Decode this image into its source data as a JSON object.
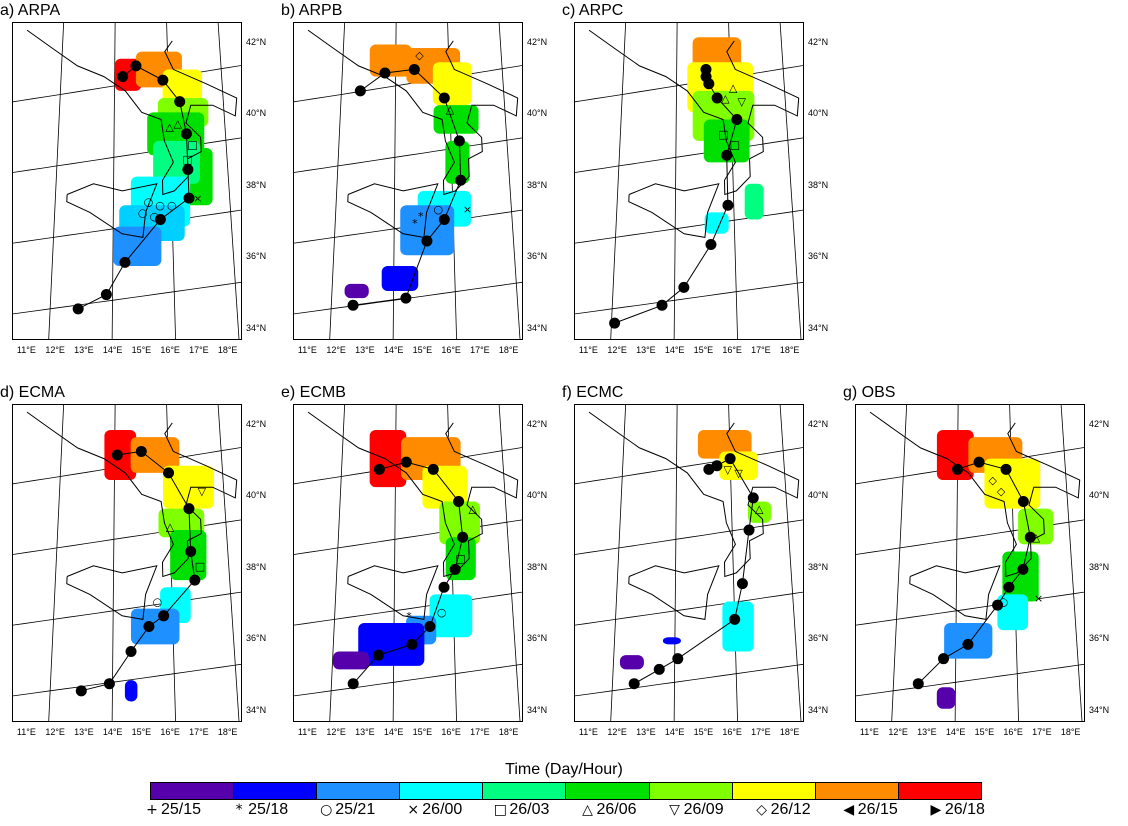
{
  "chart_data": [
    {
      "type": "scatter",
      "title": "a) ARPA",
      "track": [
        [
          12.9,
          34.7
        ],
        [
          13.8,
          35.1
        ],
        [
          14.4,
          36.0
        ],
        [
          15.6,
          37.2
        ],
        [
          16.6,
          37.8
        ],
        [
          16.6,
          38.6
        ],
        [
          16.6,
          39.6
        ],
        [
          16.4,
          40.5
        ],
        [
          15.8,
          41.1
        ],
        [
          14.8,
          41.5
        ],
        [
          14.3,
          41.2
        ]
      ],
      "patches": [
        {
          "lon": [
            14.0,
            15.0
          ],
          "lat": [
            40.8,
            41.7
          ],
          "color": "#ff0000"
        },
        {
          "lon": [
            14.8,
            16.5
          ],
          "lat": [
            40.9,
            41.9
          ],
          "color": "#ff8c00"
        },
        {
          "lon": [
            15.8,
            17.2
          ],
          "lat": [
            40.2,
            41.4
          ],
          "color": "#ffff00"
        },
        {
          "lon": [
            15.6,
            17.4
          ],
          "lat": [
            39.8,
            40.6
          ],
          "color": "#80ff00"
        },
        {
          "lon": [
            15.2,
            17.2
          ],
          "lat": [
            39.0,
            40.2
          ],
          "color": "#00e000"
        },
        {
          "lon": [
            16.4,
            17.4
          ],
          "lat": [
            37.6,
            39.2
          ],
          "color": "#00e000"
        },
        {
          "lon": [
            15.4,
            17.0
          ],
          "lat": [
            38.2,
            39.4
          ],
          "color": "#00ff80"
        },
        {
          "lon": [
            14.6,
            16.6
          ],
          "lat": [
            37.0,
            38.4
          ],
          "color": "#00ffff"
        },
        {
          "lon": [
            14.2,
            16.4
          ],
          "lat": [
            36.6,
            37.6
          ],
          "color": "#00d0ff"
        },
        {
          "lon": [
            14.0,
            15.6
          ],
          "lat": [
            35.9,
            37.0
          ],
          "color": "#1e90ff"
        }
      ],
      "markers": [
        {
          "sym": "○",
          "lon": 15.2,
          "lat": 37.7
        },
        {
          "sym": "○",
          "lon": 15.6,
          "lat": 37.6
        },
        {
          "sym": "○",
          "lon": 16.0,
          "lat": 37.6
        },
        {
          "sym": "○",
          "lon": 15.0,
          "lat": 37.4
        },
        {
          "sym": "○",
          "lon": 15.4,
          "lat": 37.3
        },
        {
          "sym": "□",
          "lon": 16.6,
          "lat": 38.9
        },
        {
          "sym": "□",
          "lon": 16.8,
          "lat": 39.3
        },
        {
          "sym": "△",
          "lon": 16.3,
          "lat": 39.9
        },
        {
          "sym": "△",
          "lon": 16.0,
          "lat": 39.8
        },
        {
          "sym": "×",
          "lon": 16.9,
          "lat": 37.8
        }
      ]
    },
    {
      "type": "scatter",
      "title": "b) ARPB",
      "track": [
        [
          12.7,
          34.8
        ],
        [
          14.4,
          35.0
        ],
        [
          15.1,
          36.6
        ],
        [
          15.7,
          37.2
        ],
        [
          16.3,
          38.3
        ],
        [
          16.3,
          39.4
        ],
        [
          15.8,
          40.6
        ],
        [
          14.7,
          41.4
        ],
        [
          13.6,
          41.3
        ],
        [
          12.7,
          40.8
        ]
      ],
      "patches": [
        {
          "lon": [
            13.0,
            14.6
          ],
          "lat": [
            41.2,
            42.1
          ],
          "color": "#ff8c00"
        },
        {
          "lon": [
            14.4,
            16.4
          ],
          "lat": [
            41.0,
            42.0
          ],
          "color": "#ff8c00"
        },
        {
          "lon": [
            15.4,
            16.8
          ],
          "lat": [
            40.4,
            41.6
          ],
          "color": "#ffff00"
        },
        {
          "lon": [
            15.4,
            17.0
          ],
          "lat": [
            39.6,
            40.4
          ],
          "color": "#00e000"
        },
        {
          "lon": [
            15.8,
            16.6
          ],
          "lat": [
            38.2,
            39.4
          ],
          "color": "#00e000"
        },
        {
          "lon": [
            14.8,
            16.6
          ],
          "lat": [
            37.0,
            38.0
          ],
          "color": "#00ffff"
        },
        {
          "lon": [
            14.2,
            16.0
          ],
          "lat": [
            36.2,
            37.6
          ],
          "color": "#1e90ff"
        },
        {
          "lon": [
            13.6,
            14.8
          ],
          "lat": [
            35.2,
            35.9
          ],
          "color": "#0000ff"
        },
        {
          "lon": [
            12.4,
            13.2
          ],
          "lat": [
            35.0,
            35.4
          ],
          "color": "#5500aa"
        }
      ],
      "markers": [
        {
          "sym": "*",
          "lon": 14.7,
          "lat": 37.1
        },
        {
          "sym": "*",
          "lon": 14.9,
          "lat": 37.3
        },
        {
          "sym": "○",
          "lon": 15.5,
          "lat": 37.5
        },
        {
          "sym": "×",
          "lon": 16.5,
          "lat": 37.5
        },
        {
          "sym": "◇",
          "lon": 14.9,
          "lat": 41.8
        },
        {
          "sym": "△",
          "lon": 16.0,
          "lat": 40.3
        }
      ]
    },
    {
      "type": "scatter",
      "title": "c) ARPC",
      "track": [
        [
          12.1,
          34.3
        ],
        [
          13.6,
          34.8
        ],
        [
          14.3,
          35.3
        ],
        [
          15.2,
          36.5
        ],
        [
          15.8,
          37.6
        ],
        [
          15.8,
          39.0
        ],
        [
          16.2,
          40.0
        ],
        [
          15.5,
          40.6
        ],
        [
          15.2,
          41.0
        ],
        [
          15.1,
          41.2
        ],
        [
          15.1,
          41.4
        ]
      ],
      "patches": [
        {
          "lon": [
            14.6,
            16.4
          ],
          "lat": [
            41.0,
            42.3
          ],
          "color": "#ff8c00"
        },
        {
          "lon": [
            14.4,
            16.8
          ],
          "lat": [
            40.2,
            41.6
          ],
          "color": "#ffff00"
        },
        {
          "lon": [
            14.6,
            16.8
          ],
          "lat": [
            39.4,
            40.8
          ],
          "color": "#80ff00"
        },
        {
          "lon": [
            15.0,
            16.6
          ],
          "lat": [
            38.8,
            40.0
          ],
          "color": "#00e000"
        },
        {
          "lon": [
            16.4,
            17.0
          ],
          "lat": [
            37.2,
            38.2
          ],
          "color": "#00ff80"
        },
        {
          "lon": [
            15.0,
            15.8
          ],
          "lat": [
            36.8,
            37.4
          ],
          "color": "#00ffff"
        }
      ],
      "markers": [
        {
          "sym": "△",
          "lon": 15.8,
          "lat": 40.6
        },
        {
          "sym": "△",
          "lon": 16.1,
          "lat": 40.9
        },
        {
          "sym": "□",
          "lon": 15.7,
          "lat": 39.6
        },
        {
          "sym": "□",
          "lon": 16.1,
          "lat": 39.3
        },
        {
          "sym": "▽",
          "lon": 16.4,
          "lat": 40.5
        }
      ]
    },
    {
      "type": "scatter",
      "title": "d) ECMA",
      "track": [
        [
          13.0,
          34.7
        ],
        [
          13.9,
          34.9
        ],
        [
          14.6,
          35.8
        ],
        [
          15.2,
          36.5
        ],
        [
          15.7,
          36.8
        ],
        [
          16.8,
          37.8
        ],
        [
          16.7,
          38.6
        ],
        [
          16.7,
          39.8
        ],
        [
          16.0,
          40.8
        ],
        [
          15.0,
          41.4
        ],
        [
          14.1,
          41.3
        ]
      ],
      "patches": [
        {
          "lon": [
            13.6,
            14.8
          ],
          "lat": [
            40.6,
            42.0
          ],
          "color": "#ff0000"
        },
        {
          "lon": [
            14.6,
            16.4
          ],
          "lat": [
            40.8,
            41.8
          ],
          "color": "#ff8c00"
        },
        {
          "lon": [
            15.8,
            17.6
          ],
          "lat": [
            39.8,
            41.0
          ],
          "color": "#ffff00"
        },
        {
          "lon": [
            15.6,
            17.2
          ],
          "lat": [
            39.0,
            39.8
          ],
          "color": "#80ff00"
        },
        {
          "lon": [
            16.0,
            17.2
          ],
          "lat": [
            37.8,
            39.2
          ],
          "color": "#00e000"
        },
        {
          "lon": [
            15.6,
            16.6
          ],
          "lat": [
            36.6,
            37.6
          ],
          "color": "#00ffff"
        },
        {
          "lon": [
            14.6,
            16.2
          ],
          "lat": [
            36.0,
            37.0
          ],
          "color": "#1e90ff"
        },
        {
          "lon": [
            14.4,
            14.8
          ],
          "lat": [
            34.4,
            35.0
          ],
          "color": "#0000ff"
        }
      ],
      "markers": [
        {
          "sym": "○",
          "lon": 15.5,
          "lat": 37.2
        },
        {
          "sym": "□",
          "lon": 17.0,
          "lat": 38.2
        },
        {
          "sym": "△",
          "lon": 16.0,
          "lat": 39.3
        },
        {
          "sym": "▽",
          "lon": 17.2,
          "lat": 40.3
        }
      ]
    },
    {
      "type": "scatter",
      "title": "e) ECMB",
      "track": [
        [
          12.7,
          34.9
        ],
        [
          13.5,
          35.7
        ],
        [
          14.6,
          36.0
        ],
        [
          15.2,
          36.5
        ],
        [
          15.7,
          37.6
        ],
        [
          16.1,
          38.1
        ],
        [
          16.4,
          39.0
        ],
        [
          16.3,
          40.0
        ],
        [
          15.4,
          40.9
        ],
        [
          14.4,
          41.1
        ],
        [
          13.4,
          40.9
        ]
      ],
      "patches": [
        {
          "lon": [
            13.0,
            14.4
          ],
          "lat": [
            40.4,
            42.0
          ],
          "color": "#ff0000"
        },
        {
          "lon": [
            14.2,
            16.4
          ],
          "lat": [
            40.6,
            41.8
          ],
          "color": "#ff8c00"
        },
        {
          "lon": [
            15.0,
            16.6
          ],
          "lat": [
            39.8,
            41.0
          ],
          "color": "#ffff00"
        },
        {
          "lon": [
            15.6,
            17.0
          ],
          "lat": [
            38.8,
            40.0
          ],
          "color": "#80ff00"
        },
        {
          "lon": [
            15.8,
            16.8
          ],
          "lat": [
            37.8,
            39.0
          ],
          "color": "#00e000"
        },
        {
          "lon": [
            15.2,
            16.6
          ],
          "lat": [
            36.2,
            37.4
          ],
          "color": "#00ffff"
        },
        {
          "lon": [
            14.4,
            15.4
          ],
          "lat": [
            36.0,
            36.8
          ],
          "color": "#1e90ff"
        },
        {
          "lon": [
            12.8,
            15.0
          ],
          "lat": [
            35.4,
            36.6
          ],
          "color": "#0000ff"
        },
        {
          "lon": [
            12.0,
            13.2
          ],
          "lat": [
            35.3,
            35.8
          ],
          "color": "#5500aa"
        }
      ],
      "markers": [
        {
          "sym": "*",
          "lon": 14.5,
          "lat": 36.8
        },
        {
          "sym": "○",
          "lon": 15.6,
          "lat": 36.9
        },
        {
          "sym": "□",
          "lon": 16.3,
          "lat": 38.4
        },
        {
          "sym": "△",
          "lon": 16.8,
          "lat": 39.8
        }
      ]
    },
    {
      "type": "scatter",
      "title": "f) ECMC",
      "track": [
        [
          12.7,
          34.9
        ],
        [
          13.5,
          35.3
        ],
        [
          14.1,
          35.6
        ],
        [
          16.0,
          36.7
        ],
        [
          16.3,
          37.7
        ],
        [
          16.6,
          39.2
        ],
        [
          16.8,
          40.1
        ],
        [
          16.0,
          41.2
        ],
        [
          15.5,
          41.0
        ],
        [
          15.2,
          40.9
        ]
      ],
      "patches": [
        {
          "lon": [
            14.8,
            16.8
          ],
          "lat": [
            41.2,
            42.0
          ],
          "color": "#ff8c00"
        },
        {
          "lon": [
            15.6,
            17.0
          ],
          "lat": [
            40.6,
            41.4
          ],
          "color": "#ffff00"
        },
        {
          "lon": [
            16.6,
            17.4
          ],
          "lat": [
            39.4,
            40.0
          ],
          "color": "#80ff00"
        },
        {
          "lon": [
            15.6,
            16.6
          ],
          "lat": [
            35.8,
            37.2
          ],
          "color": "#00ffff"
        },
        {
          "lon": [
            13.6,
            14.2
          ],
          "lat": [
            36.0,
            36.2
          ],
          "color": "#0000ff"
        },
        {
          "lon": [
            12.2,
            13.0
          ],
          "lat": [
            35.3,
            35.7
          ],
          "color": "#5500aa"
        }
      ],
      "markers": [
        {
          "sym": "▽",
          "lon": 15.9,
          "lat": 40.9
        },
        {
          "sym": "▽",
          "lon": 16.3,
          "lat": 40.8
        },
        {
          "sym": "△",
          "lon": 17.0,
          "lat": 39.8
        }
      ]
    },
    {
      "type": "scatter",
      "title": "g) OBS",
      "track": [
        [
          12.8,
          34.9
        ],
        [
          13.6,
          35.6
        ],
        [
          14.4,
          36.0
        ],
        [
          15.4,
          37.1
        ],
        [
          15.8,
          37.6
        ],
        [
          16.3,
          38.1
        ],
        [
          16.6,
          39.0
        ],
        [
          16.4,
          40.0
        ],
        [
          15.8,
          40.9
        ],
        [
          14.8,
          41.1
        ],
        [
          14.0,
          40.9
        ]
      ],
      "patches": [
        {
          "lon": [
            13.2,
            14.6
          ],
          "lat": [
            40.6,
            42.0
          ],
          "color": "#ff0000"
        },
        {
          "lon": [
            14.4,
            16.4
          ],
          "lat": [
            40.8,
            41.8
          ],
          "color": "#ff8c00"
        },
        {
          "lon": [
            15.0,
            17.0
          ],
          "lat": [
            39.8,
            41.2
          ],
          "color": "#ffff00"
        },
        {
          "lon": [
            16.2,
            17.4
          ],
          "lat": [
            38.8,
            39.8
          ],
          "color": "#80ff00"
        },
        {
          "lon": [
            15.6,
            16.8
          ],
          "lat": [
            37.2,
            38.6
          ],
          "color": "#00e000"
        },
        {
          "lon": [
            15.4,
            16.4
          ],
          "lat": [
            36.4,
            37.4
          ],
          "color": "#00ffff"
        },
        {
          "lon": [
            13.6,
            15.2
          ],
          "lat": [
            35.6,
            36.6
          ],
          "color": "#1e90ff"
        },
        {
          "lon": [
            13.4,
            14.0
          ],
          "lat": [
            34.2,
            34.8
          ],
          "color": "#5500aa"
        }
      ],
      "markers": [
        {
          "sym": "◇",
          "lon": 15.3,
          "lat": 40.6
        },
        {
          "sym": "◇",
          "lon": 15.6,
          "lat": 40.3
        },
        {
          "sym": "△",
          "lon": 16.8,
          "lat": 39.0
        },
        {
          "sym": "○",
          "lon": 15.6,
          "lat": 37.2
        },
        {
          "sym": "×",
          "lon": 16.8,
          "lat": 37.3
        }
      ]
    }
  ],
  "axes": {
    "lon_ticks": [
      "11°E",
      "12°E",
      "13°E",
      "14°E",
      "15°E",
      "16°E",
      "17°E",
      "18°E"
    ],
    "lat_ticks": [
      "42°N",
      "40°N",
      "38°N",
      "36°N",
      "34°N"
    ]
  },
  "legend": {
    "title": "Time (Day/Hour)",
    "colors": [
      "#5500aa",
      "#0000ff",
      "#1e90ff",
      "#00ffff",
      "#00ff80",
      "#00e000",
      "#80ff00",
      "#ffff00",
      "#ff8c00",
      "#ff0000"
    ],
    "items": [
      {
        "symbol": "+",
        "label": "25/15"
      },
      {
        "symbol": "*",
        "label": "25/18"
      },
      {
        "symbol": "○",
        "label": "25/21"
      },
      {
        "symbol": "×",
        "label": "26/00"
      },
      {
        "symbol": "□",
        "label": "26/03"
      },
      {
        "symbol": "△",
        "label": "26/06"
      },
      {
        "symbol": "▽",
        "label": "26/09"
      },
      {
        "symbol": "◇",
        "label": "26/12"
      },
      {
        "symbol": "◀",
        "label": "26/15"
      },
      {
        "symbol": "▶",
        "label": "26/18"
      }
    ]
  }
}
